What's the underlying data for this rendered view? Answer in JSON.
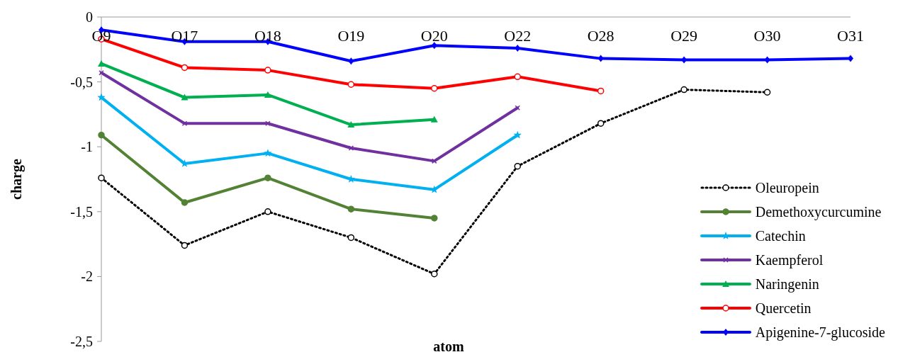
{
  "chart_data": {
    "type": "line",
    "xlabel": "atom",
    "ylabel": "charge",
    "categories": [
      "O9",
      "O17",
      "O18",
      "O19",
      "O20",
      "O22",
      "O28",
      "O29",
      "O30",
      "O31"
    ],
    "ylim": [
      -2.5,
      0
    ],
    "yticks": [
      0,
      {
        "value": -0.5,
        "label": "-0,5"
      },
      -1,
      {
        "value": -1.5,
        "label": "-1,5"
      },
      -2,
      {
        "value": -2.5,
        "label": "-2,5"
      }
    ],
    "legend": "bottom right",
    "series": [
      {
        "name": "Oleuropein",
        "color": "#000000",
        "marker": "circle",
        "line_style": "dotted",
        "values": [
          -1.24,
          -1.76,
          -1.5,
          -1.7,
          -1.98,
          -1.15,
          -0.82,
          -0.56,
          -0.58,
          null
        ]
      },
      {
        "name": "Demethoxycurcumine",
        "color": "#548235",
        "marker": "circle",
        "line_style": "solid",
        "values": [
          -0.91,
          -1.43,
          -1.24,
          -1.48,
          -1.55,
          null,
          null,
          null,
          null,
          null
        ]
      },
      {
        "name": "Catechin",
        "color": "#00b0f0",
        "marker": "star",
        "line_style": "solid",
        "values": [
          -0.62,
          -1.13,
          -1.05,
          -1.25,
          -1.33,
          -0.91,
          null,
          null,
          null,
          null
        ]
      },
      {
        "name": "Kaempferol",
        "color": "#7030a0",
        "marker": "cross",
        "line_style": "solid",
        "values": [
          -0.43,
          -0.82,
          -0.82,
          -1.01,
          -1.11,
          -0.7,
          null,
          null,
          null,
          null
        ]
      },
      {
        "name": "Naringenin",
        "color": "#00b050",
        "marker": "triangle",
        "line_style": "solid",
        "values": [
          -0.36,
          -0.62,
          -0.6,
          -0.83,
          -0.79,
          null,
          null,
          null,
          null,
          null
        ]
      },
      {
        "name": "Quercetin",
        "color": "#ff0000",
        "marker": "circle",
        "line_style": "solid",
        "values": [
          -0.17,
          -0.39,
          -0.41,
          -0.52,
          -0.55,
          -0.46,
          -0.57,
          null,
          null,
          null
        ]
      },
      {
        "name": "Apigenine-7-glucoside",
        "color": "#0000ff",
        "marker": "diamond",
        "line_style": "solid",
        "values": [
          -0.1,
          -0.19,
          -0.19,
          -0.34,
          -0.22,
          -0.24,
          -0.32,
          -0.33,
          -0.33,
          -0.32
        ]
      }
    ]
  }
}
